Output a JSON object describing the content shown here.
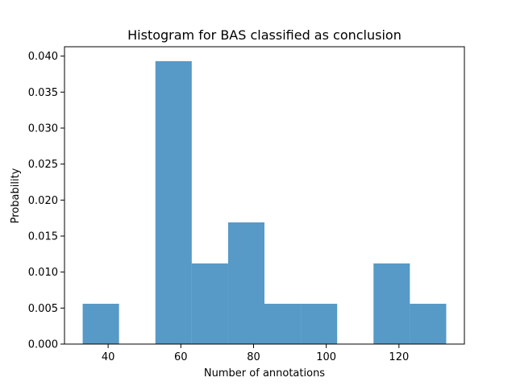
{
  "chart_data": {
    "type": "bar",
    "title": "Histogram for BAS classified as conclusion",
    "xlabel": "Number of annotations",
    "ylabel": "Probability",
    "bin_edges": [
      33,
      43,
      53,
      63,
      73,
      83,
      93,
      103,
      113,
      123,
      133
    ],
    "values": [
      0.0056,
      0,
      0.0393,
      0.0112,
      0.0169,
      0.0056,
      0.0056,
      0,
      0.0112,
      0.0056
    ],
    "xlim": [
      28,
      138
    ],
    "ylim": [
      0,
      0.0413
    ],
    "x_ticks": [
      40,
      60,
      80,
      100,
      120
    ],
    "x_tick_labels": [
      "40",
      "60",
      "80",
      "100",
      "120"
    ],
    "y_ticks": [
      0,
      0.005,
      0.01,
      0.015,
      0.02,
      0.025,
      0.03,
      0.035,
      0.04
    ],
    "y_tick_labels": [
      "0.000",
      "0.005",
      "0.010",
      "0.015",
      "0.020",
      "0.025",
      "0.030",
      "0.035",
      "0.040"
    ],
    "bar_color": "#1f77b4",
    "bar_opacity": 0.75,
    "grid": false,
    "legend": "none"
  }
}
